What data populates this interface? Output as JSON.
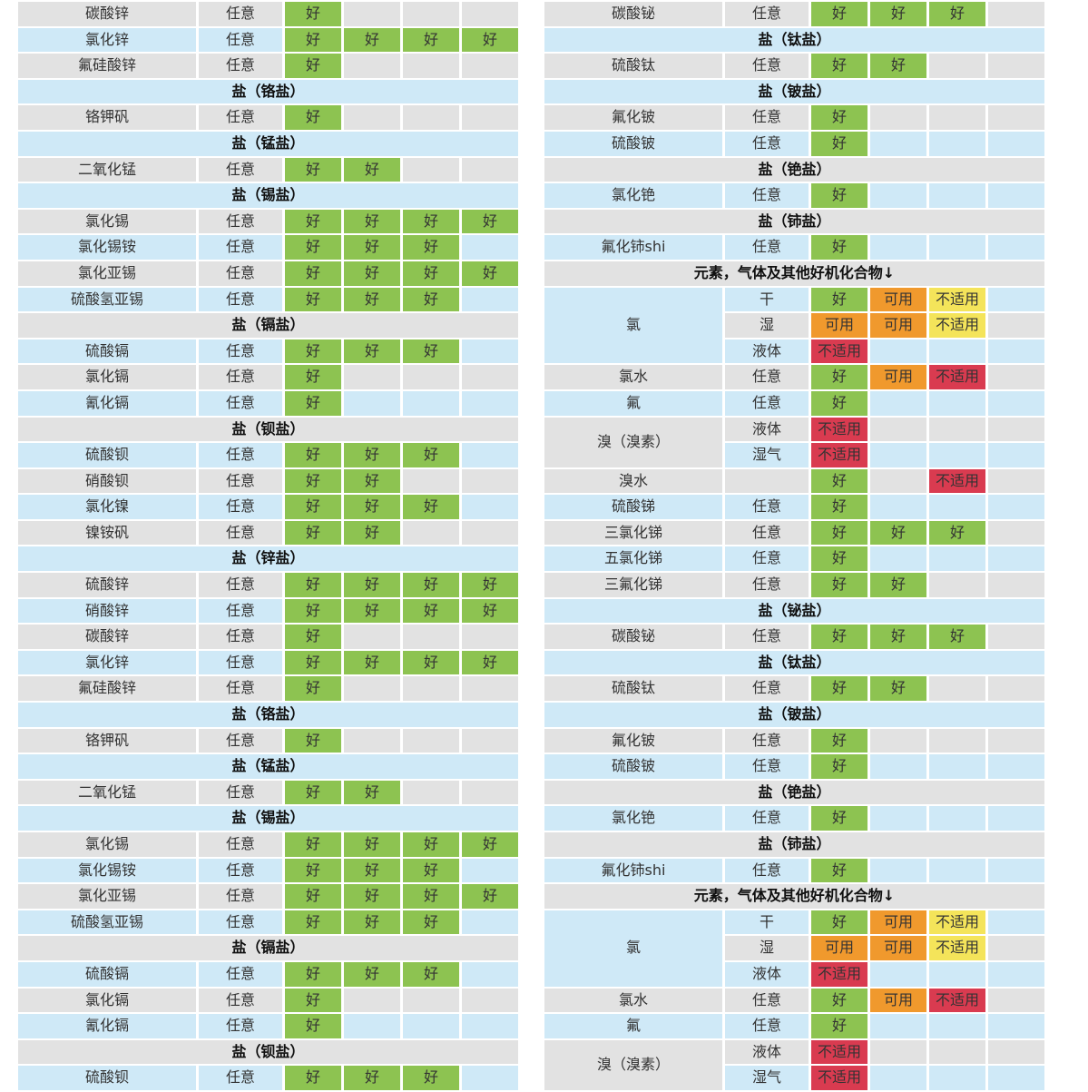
{
  "palette": {
    "background": "#ffffff",
    "row_gray": "#e2e2e2",
    "row_blue": "#cfe9f7",
    "text": "#333333",
    "section_text": "#0f0f0f"
  },
  "legend": {
    "G": {
      "label": "好",
      "color": "#8dc351"
    },
    "O": {
      "label": "可用",
      "color": "#f0992d"
    },
    "Y": {
      "label": "不适用",
      "color": "#f4e45a"
    },
    "R": {
      "label": "不适用",
      "color": "#d93b50"
    }
  },
  "tables": {
    "left": {
      "rows": [
        {
          "type": "item",
          "name": "碳酸锌",
          "cond": "任意",
          "r": [
            "G"
          ]
        },
        {
          "type": "item",
          "name": "氯化锌",
          "cond": "任意",
          "r": [
            "G",
            "G",
            "G",
            "G"
          ]
        },
        {
          "type": "item",
          "name": "氟硅酸锌",
          "cond": "任意",
          "r": [
            "G"
          ]
        },
        {
          "type": "section",
          "label": "盐（铬盐）"
        },
        {
          "type": "item",
          "name": "铬钾矾",
          "cond": "任意",
          "r": [
            "G"
          ]
        },
        {
          "type": "section",
          "label": "盐（锰盐）"
        },
        {
          "type": "item",
          "name": "二氧化锰",
          "cond": "任意",
          "r": [
            "G",
            "G"
          ]
        },
        {
          "type": "section",
          "label": "盐（锡盐）"
        },
        {
          "type": "item",
          "name": "氯化锡",
          "cond": "任意",
          "r": [
            "G",
            "G",
            "G",
            "G"
          ]
        },
        {
          "type": "item",
          "name": "氯化锡铵",
          "cond": "任意",
          "r": [
            "G",
            "G",
            "G"
          ]
        },
        {
          "type": "item",
          "name": "氯化亚锡",
          "cond": "任意",
          "r": [
            "G",
            "G",
            "G",
            "G"
          ]
        },
        {
          "type": "item",
          "name": "硫酸氢亚锡",
          "cond": "任意",
          "r": [
            "G",
            "G",
            "G"
          ]
        },
        {
          "type": "section",
          "label": "盐（镉盐）"
        },
        {
          "type": "item",
          "name": "硫酸镉",
          "cond": "任意",
          "r": [
            "G",
            "G",
            "G"
          ]
        },
        {
          "type": "item",
          "name": "氯化镉",
          "cond": "任意",
          "r": [
            "G"
          ]
        },
        {
          "type": "item",
          "name": "氰化镉",
          "cond": "任意",
          "r": [
            "G"
          ]
        },
        {
          "type": "section",
          "label": "盐（钡盐）"
        },
        {
          "type": "item",
          "name": "硫酸钡",
          "cond": "任意",
          "r": [
            "G",
            "G",
            "G"
          ]
        },
        {
          "type": "item",
          "name": "硝酸钡",
          "cond": "任意",
          "r": [
            "G",
            "G"
          ]
        },
        {
          "type": "item",
          "name": "氯化镍",
          "cond": "任意",
          "r": [
            "G",
            "G",
            "G"
          ]
        },
        {
          "type": "item",
          "name": "镍铵矾",
          "cond": "任意",
          "r": [
            "G",
            "G"
          ]
        },
        {
          "type": "section",
          "label": "盐（锌盐）"
        },
        {
          "type": "item",
          "name": "硫酸锌",
          "cond": "任意",
          "r": [
            "G",
            "G",
            "G",
            "G"
          ]
        },
        {
          "type": "item",
          "name": "硝酸锌",
          "cond": "任意",
          "r": [
            "G",
            "G",
            "G",
            "G"
          ]
        },
        {
          "type": "item",
          "name": "碳酸锌",
          "cond": "任意",
          "r": [
            "G"
          ]
        },
        {
          "type": "item",
          "name": "氯化锌",
          "cond": "任意",
          "r": [
            "G",
            "G",
            "G",
            "G"
          ]
        },
        {
          "type": "item",
          "name": "氟硅酸锌",
          "cond": "任意",
          "r": [
            "G"
          ]
        },
        {
          "type": "section",
          "label": "盐（铬盐）"
        },
        {
          "type": "item",
          "name": "铬钾矾",
          "cond": "任意",
          "r": [
            "G"
          ]
        },
        {
          "type": "section",
          "label": "盐（锰盐）"
        },
        {
          "type": "item",
          "name": "二氧化锰",
          "cond": "任意",
          "r": [
            "G",
            "G"
          ]
        },
        {
          "type": "section",
          "label": "盐（锡盐）"
        },
        {
          "type": "item",
          "name": "氯化锡",
          "cond": "任意",
          "r": [
            "G",
            "G",
            "G",
            "G"
          ]
        },
        {
          "type": "item",
          "name": "氯化锡铵",
          "cond": "任意",
          "r": [
            "G",
            "G",
            "G"
          ]
        },
        {
          "type": "item",
          "name": "氯化亚锡",
          "cond": "任意",
          "r": [
            "G",
            "G",
            "G",
            "G"
          ]
        },
        {
          "type": "item",
          "name": "硫酸氢亚锡",
          "cond": "任意",
          "r": [
            "G",
            "G",
            "G"
          ]
        },
        {
          "type": "section",
          "label": "盐（镉盐）"
        },
        {
          "type": "item",
          "name": "硫酸镉",
          "cond": "任意",
          "r": [
            "G",
            "G",
            "G"
          ]
        },
        {
          "type": "item",
          "name": "氯化镉",
          "cond": "任意",
          "r": [
            "G"
          ]
        },
        {
          "type": "item",
          "name": "氰化镉",
          "cond": "任意",
          "r": [
            "G"
          ]
        },
        {
          "type": "section",
          "label": "盐（钡盐）"
        },
        {
          "type": "item",
          "name": "硫酸钡",
          "cond": "任意",
          "r": [
            "G",
            "G",
            "G"
          ]
        }
      ]
    },
    "right": {
      "rows": [
        {
          "type": "item",
          "name": "碳酸铋",
          "cond": "任意",
          "r": [
            "G",
            "G",
            "G"
          ]
        },
        {
          "type": "section",
          "label": "盐（钛盐）"
        },
        {
          "type": "item",
          "name": "硫酸钛",
          "cond": "任意",
          "r": [
            "G",
            "G"
          ]
        },
        {
          "type": "section",
          "label": "盐（铍盐）"
        },
        {
          "type": "item",
          "name": "氟化铍",
          "cond": "任意",
          "r": [
            "G"
          ]
        },
        {
          "type": "item",
          "name": "硫酸铍",
          "cond": "任意",
          "r": [
            "G"
          ]
        },
        {
          "type": "section",
          "label": "盐（铯盐）"
        },
        {
          "type": "item",
          "name": "氯化铯",
          "cond": "任意",
          "r": [
            "G"
          ]
        },
        {
          "type": "section",
          "label": "盐（铈盐）"
        },
        {
          "type": "item",
          "name": "氟化铈shi",
          "cond": "任意",
          "r": [
            "G"
          ]
        },
        {
          "type": "section",
          "label": "元素，气体及其他好机化合物↓"
        },
        {
          "type": "group",
          "name": "氯",
          "subs": [
            {
              "cond": "干",
              "r": [
                "G",
                "O",
                "Y"
              ]
            },
            {
              "cond": "湿",
              "r": [
                "O",
                "O",
                "Y"
              ]
            },
            {
              "cond": "液体",
              "r": [
                "R"
              ]
            }
          ]
        },
        {
          "type": "item",
          "name": "氯水",
          "cond": "任意",
          "r": [
            "G",
            "O",
            "R"
          ]
        },
        {
          "type": "item",
          "name": "氟",
          "cond": "任意",
          "r": [
            "G"
          ]
        },
        {
          "type": "group",
          "name": "溴（溴素）",
          "subs": [
            {
              "cond": "液体",
              "r": [
                "R"
              ]
            },
            {
              "cond": "湿气",
              "r": [
                "R"
              ]
            }
          ]
        },
        {
          "type": "item",
          "name": "溴水",
          "cond": "",
          "r": [
            "G",
            null,
            "R"
          ]
        },
        {
          "type": "item",
          "name": "硫酸锑",
          "cond": "任意",
          "r": [
            "G"
          ]
        },
        {
          "type": "item",
          "name": "三氯化锑",
          "cond": "任意",
          "r": [
            "G",
            "G",
            "G"
          ]
        },
        {
          "type": "item",
          "name": "五氯化锑",
          "cond": "任意",
          "r": [
            "G"
          ]
        },
        {
          "type": "item",
          "name": "三氟化锑",
          "cond": "任意",
          "r": [
            "G",
            "G"
          ]
        },
        {
          "type": "section",
          "label": "盐（铋盐）"
        },
        {
          "type": "item",
          "name": "碳酸铋",
          "cond": "任意",
          "r": [
            "G",
            "G",
            "G"
          ]
        },
        {
          "type": "section",
          "label": "盐（钛盐）"
        },
        {
          "type": "item",
          "name": "硫酸钛",
          "cond": "任意",
          "r": [
            "G",
            "G"
          ]
        },
        {
          "type": "section",
          "label": "盐（铍盐）"
        },
        {
          "type": "item",
          "name": "氟化铍",
          "cond": "任意",
          "r": [
            "G"
          ]
        },
        {
          "type": "item",
          "name": "硫酸铍",
          "cond": "任意",
          "r": [
            "G"
          ]
        },
        {
          "type": "section",
          "label": "盐（铯盐）"
        },
        {
          "type": "item",
          "name": "氯化铯",
          "cond": "任意",
          "r": [
            "G"
          ]
        },
        {
          "type": "section",
          "label": "盐（铈盐）"
        },
        {
          "type": "item",
          "name": "氟化铈shi",
          "cond": "任意",
          "r": [
            "G"
          ]
        },
        {
          "type": "section",
          "label": "元素，气体及其他好机化合物↓"
        },
        {
          "type": "group",
          "name": "氯",
          "subs": [
            {
              "cond": "干",
              "r": [
                "G",
                "O",
                "Y"
              ]
            },
            {
              "cond": "湿",
              "r": [
                "O",
                "O",
                "Y"
              ]
            },
            {
              "cond": "液体",
              "r": [
                "R"
              ]
            }
          ]
        },
        {
          "type": "item",
          "name": "氯水",
          "cond": "任意",
          "r": [
            "G",
            "O",
            "R"
          ]
        },
        {
          "type": "item",
          "name": "氟",
          "cond": "任意",
          "r": [
            "G"
          ]
        },
        {
          "type": "group",
          "name": "溴（溴素）",
          "subs": [
            {
              "cond": "液体",
              "r": [
                "R"
              ]
            },
            {
              "cond": "湿气",
              "r": [
                "R"
              ]
            }
          ]
        }
      ]
    }
  }
}
